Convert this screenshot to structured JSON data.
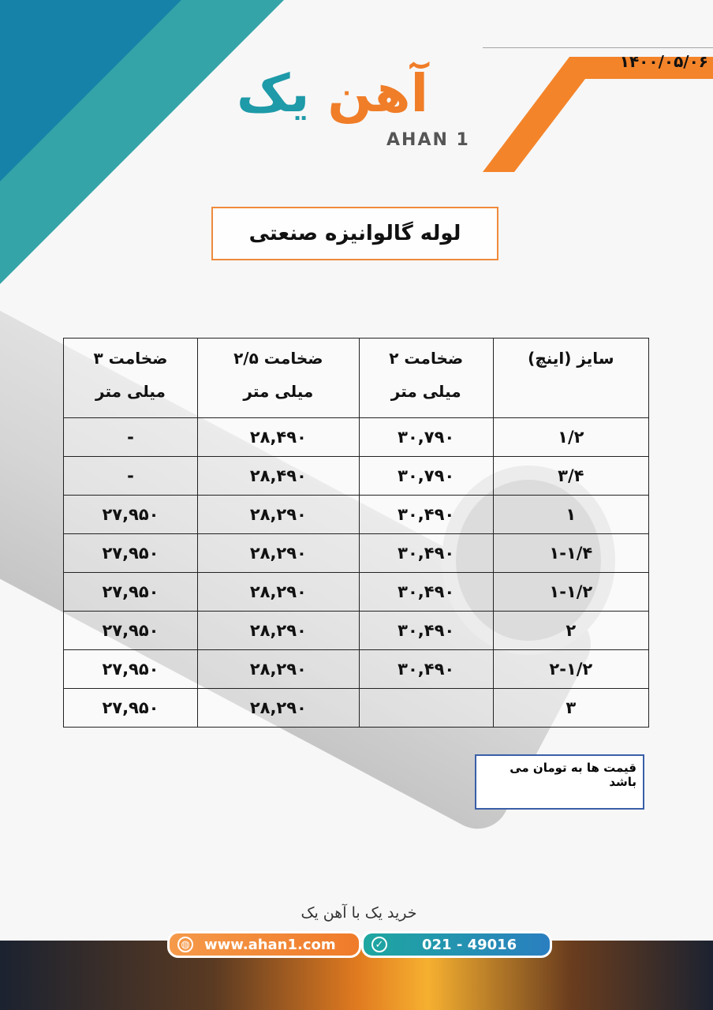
{
  "header": {
    "date": "۱۴۰۰/۰۵/۰۶",
    "logo_text_fa": "آهن یک",
    "logo_text_en": "AHAN 1"
  },
  "title": "لوله گالوانیزه صنعتی",
  "table": {
    "headers": [
      {
        "line1": "سایز (اینچ)",
        "line2": ""
      },
      {
        "line1": "ضخامت ۲",
        "line2": "میلی متر"
      },
      {
        "line1": "ضخامت ۲/۵",
        "line2": "میلی متر"
      },
      {
        "line1": "ضخامت ۳",
        "line2": "میلی متر"
      }
    ],
    "rows": [
      [
        "۱/۲",
        "۳۰,۷۹۰",
        "۲۸,۴۹۰",
        "-"
      ],
      [
        "۳/۴",
        "۳۰,۷۹۰",
        "۲۸,۴۹۰",
        "-"
      ],
      [
        "۱",
        "۳۰,۴۹۰",
        "۲۸,۲۹۰",
        "۲۷,۹۵۰"
      ],
      [
        "۱-۱/۴",
        "۳۰,۴۹۰",
        "۲۸,۲۹۰",
        "۲۷,۹۵۰"
      ],
      [
        "۱-۱/۲",
        "۳۰,۴۹۰",
        "۲۸,۲۹۰",
        "۲۷,۹۵۰"
      ],
      [
        "۲",
        "۳۰,۴۹۰",
        "۲۸,۲۹۰",
        "۲۷,۹۵۰"
      ],
      [
        "۲-۱/۲",
        "۳۰,۴۹۰",
        "۲۸,۲۹۰",
        "۲۷,۹۵۰"
      ],
      [
        "۳",
        "",
        "۲۸,۲۹۰",
        "۲۷,۹۵۰"
      ]
    ]
  },
  "note": "قیمت ها به تومان می باشد",
  "footer": {
    "slogan": "خرید یک با آهن یک",
    "website": "www.ahan1.com",
    "phone": "021 - 49016",
    "website_icon": "globe-icon",
    "phone_icon": "check-circle-icon"
  },
  "colors": {
    "orange": "#f07d28",
    "teal": "#1e9aa8",
    "note_border": "#3a5fa8"
  }
}
